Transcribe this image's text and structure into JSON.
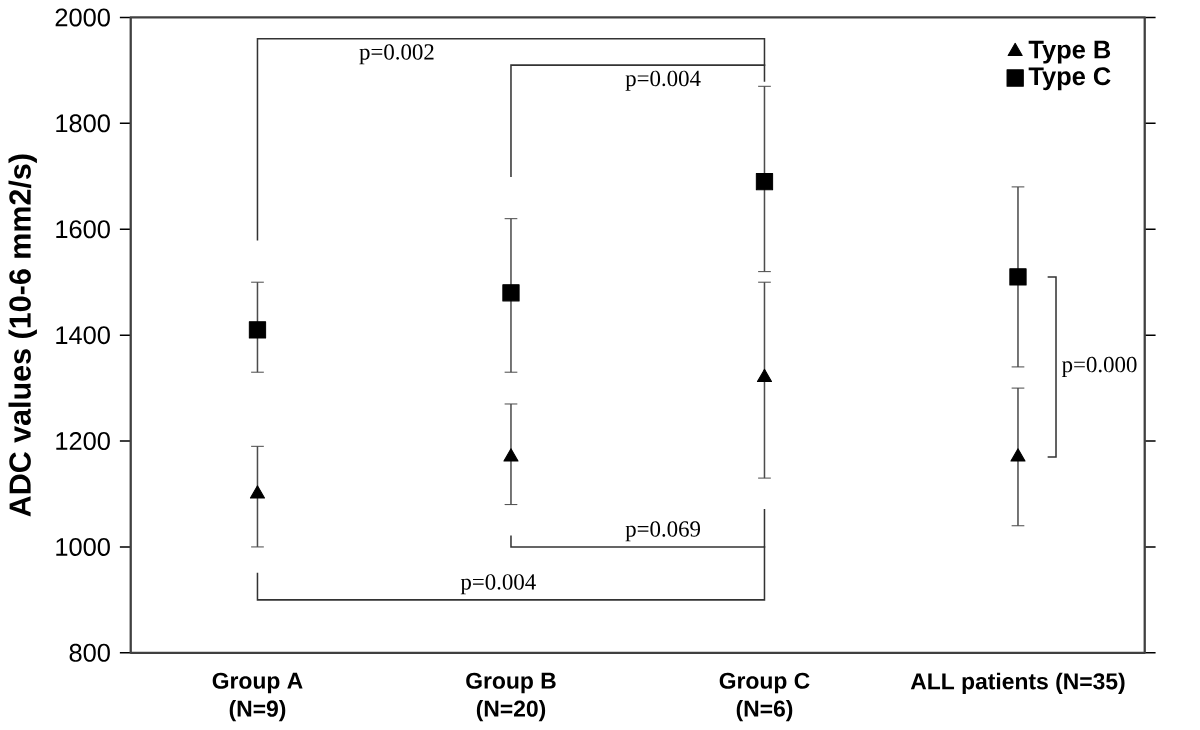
{
  "chart_data": {
    "type": "scatter",
    "ylabel": "ADC values (10-6 mm2/s)",
    "categories": [
      "Group A (N=9)",
      "Group B (N=20)",
      "Group C (N=6)",
      "ALL patients  (N=35)"
    ],
    "series": [
      {
        "name": "Type B",
        "color": "#000000",
        "marker": "triangle",
        "values": [
          1100,
          1170,
          1320,
          1170
        ],
        "errors": [
          [
            1000,
            1190
          ],
          [
            1080,
            1270
          ],
          [
            1130,
            1500
          ],
          [
            1040,
            1300
          ]
        ]
      },
      {
        "name": "Type C",
        "color": "#000000",
        "marker": "square",
        "values": [
          1410,
          1480,
          1690,
          1510
        ],
        "errors": [
          [
            1330,
            1500
          ],
          [
            1330,
            1620
          ],
          [
            1520,
            1870
          ],
          [
            1340,
            1680
          ]
        ]
      }
    ],
    "ylim": [
      800,
      2000
    ],
    "yticks": [
      800,
      1000,
      1200,
      1400,
      1600,
      1800,
      2000
    ],
    "annotations": [
      "p=0.002",
      "p=0.004",
      "p=0.069",
      "p=0.004",
      "p=0.000"
    ],
    "legend": "top right",
    "grid": false
  }
}
